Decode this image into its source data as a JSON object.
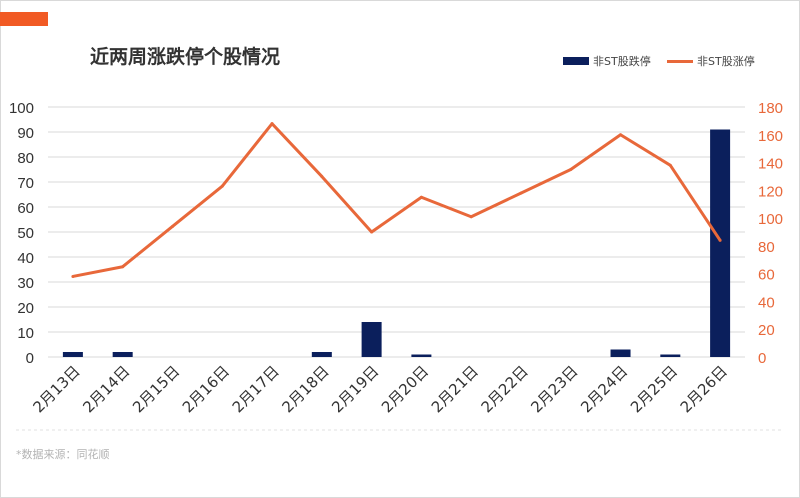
{
  "colors": {
    "accent": "#f15a24",
    "bar": "#0b1f5c",
    "line": "#e8683a",
    "right_axis_text": "#e8683a",
    "left_axis_text": "#333333",
    "grid": "#d9d9d9"
  },
  "header": {
    "title": "近两周涨跌停个股情况"
  },
  "footer": {
    "source": "*数据来源：同花顺"
  },
  "chart_data": {
    "type": "bar+line",
    "title": "近两周涨跌停个股情况",
    "categories": [
      "2月13日",
      "2月14日",
      "2月15日",
      "2月16日",
      "2月17日",
      "2月18日",
      "2月19日",
      "2月20日",
      "2月21日",
      "2月22日",
      "2月23日",
      "2月24日",
      "2月25日",
      "2月26日"
    ],
    "series": [
      {
        "name": "非ST股跌停",
        "type": "bar",
        "axis": "left",
        "values": [
          2,
          2,
          null,
          null,
          null,
          2,
          14,
          1,
          null,
          null,
          null,
          3,
          1,
          91
        ]
      },
      {
        "name": "非ST股涨停",
        "type": "line",
        "axis": "right",
        "values": [
          58,
          65,
          94,
          123,
          168,
          130,
          90,
          115,
          101,
          118,
          135,
          160,
          138,
          84
        ]
      }
    ],
    "left_axis": {
      "min": 0,
      "max": 100,
      "ticks": [
        0,
        10,
        20,
        30,
        40,
        50,
        60,
        70,
        80,
        90,
        100
      ]
    },
    "right_axis": {
      "min": 0,
      "max": 180,
      "ticks": [
        0,
        20,
        40,
        60,
        80,
        100,
        120,
        140,
        160,
        180
      ]
    },
    "grid": true,
    "legend": "top-right"
  }
}
